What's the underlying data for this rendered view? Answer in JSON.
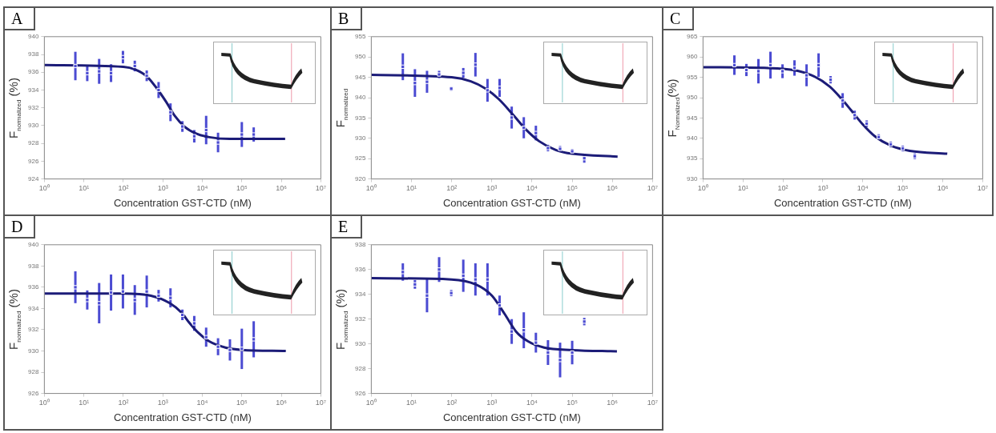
{
  "chart_data": [
    {
      "type": "scatter",
      "title": "A",
      "xlabel": "Concentration GST-CTD (nM)",
      "ylabel": "F$_{normalized}$ (%)",
      "log": "x",
      "xlim": [
        1,
        10000000
      ],
      "ylim": [
        924,
        940
      ],
      "xticks": [
        {
          "value": 1,
          "label": "10⁰"
        },
        {
          "value": 10,
          "label": "10¹"
        },
        {
          "value": 100,
          "label": "10²"
        },
        {
          "value": 1000,
          "label": "10³"
        },
        {
          "value": 10000,
          "label": "10⁴"
        },
        {
          "value": 100000,
          "label": "10⁵"
        },
        {
          "value": 1000000,
          "label": "10⁶"
        },
        {
          "value": 10000000,
          "label": "10⁷"
        }
      ],
      "yticks": [
        924,
        926,
        928,
        930,
        932,
        934,
        936,
        938,
        940
      ],
      "series": [
        {
          "type": "scatter",
          "marker": "square",
          "color": "#4b4bd2",
          "x": [
            6.1,
            12.2,
            24.4,
            48.8,
            97.7,
            195,
            391,
            781,
            1562,
            3125,
            6250,
            12500,
            25000,
            100000,
            200000
          ],
          "values": [
            936.7,
            935.9,
            936.1,
            935.9,
            937.7,
            936.7,
            935.6,
            934.0,
            931.5,
            929.9,
            928.8,
            929.5,
            928.1,
            929.0,
            929.0
          ],
          "errors": [
            1.6,
            0.9,
            1.4,
            1.0,
            0.7,
            0.6,
            0.6,
            0.9,
            1.0,
            0.6,
            0.7,
            1.6,
            1.1,
            1.4,
            0.8
          ]
        },
        {
          "type": "line",
          "marker": "none",
          "color": "#1c1c78",
          "x": [
            1,
            100,
            200,
            400,
            700,
            1200,
            2000,
            3500,
            7000,
            15000,
            50000,
            1250000
          ],
          "values": [
            936.8,
            936.6,
            936.3,
            935.5,
            934.2,
            932.7,
            931.1,
            929.9,
            929.1,
            928.7,
            928.5,
            928.5
          ]
        }
      ]
    },
    {
      "type": "scatter",
      "title": "B",
      "xlabel": "Concentration GST-CTD (nM)",
      "ylabel": "F$_{normalized}$",
      "log": "x",
      "xlim": [
        1,
        10000000
      ],
      "ylim": [
        920,
        955
      ],
      "xticks": [
        {
          "value": 1,
          "label": "10⁰"
        },
        {
          "value": 10,
          "label": "10¹"
        },
        {
          "value": 100,
          "label": "10²"
        },
        {
          "value": 1000,
          "label": "10³"
        },
        {
          "value": 10000,
          "label": "10⁴"
        },
        {
          "value": 100000,
          "label": "10⁵"
        },
        {
          "value": 1000000,
          "label": "10⁶"
        },
        {
          "value": 10000000,
          "label": "10⁷"
        }
      ],
      "yticks": [
        920,
        925,
        930,
        935,
        940,
        945,
        950,
        955
      ],
      "series": [
        {
          "type": "scatter",
          "marker": "square",
          "color": "#4b4bd2",
          "x": [
            6.1,
            12.2,
            24.4,
            48.8,
            97.7,
            195,
            391,
            781,
            1562,
            3125,
            6250,
            12500,
            25000,
            50000,
            100000,
            200000
          ],
          "values": [
            947.6,
            943.6,
            943.9,
            945.7,
            942.2,
            946.1,
            948.1,
            941.8,
            942.4,
            935.1,
            932.6,
            931.3,
            927.6,
            927.4,
            926.8,
            925.1
          ],
          "errors": [
            3.3,
            3.4,
            2.7,
            0.9,
            0.5,
            1.2,
            2.9,
            2.8,
            2.2,
            2.7,
            2.6,
            1.8,
            0.8,
            0.7,
            0.6,
            1.1
          ]
        },
        {
          "type": "line",
          "marker": "none",
          "color": "#1c1c78",
          "x": [
            1,
            100,
            300,
            700,
            1500,
            3500,
            7000,
            15000,
            40000,
            100000,
            1350000
          ],
          "values": [
            945.6,
            945.0,
            944.0,
            942.2,
            939.6,
            935.6,
            932.2,
            929.3,
            927.1,
            926.2,
            925.5
          ]
        }
      ]
    },
    {
      "type": "scatter",
      "title": "C",
      "xlabel": "Concentration GST-CTD (nM)",
      "ylabel": "F$_{Normalized}$(%)",
      "log": "x",
      "xlim": [
        1,
        10000000
      ],
      "ylim": [
        930,
        965
      ],
      "xticks": [
        {
          "value": 1,
          "label": "10⁰"
        },
        {
          "value": 10,
          "label": "10¹"
        },
        {
          "value": 100,
          "label": "10²"
        },
        {
          "value": 1000,
          "label": "10³"
        },
        {
          "value": 10000,
          "label": "10⁴"
        },
        {
          "value": 100000,
          "label": "10⁵"
        },
        {
          "value": 1000000,
          "label": "10⁶"
        },
        {
          "value": 10000000,
          "label": "10⁷"
        }
      ],
      "yticks": [
        930,
        935,
        940,
        945,
        950,
        955,
        960,
        965
      ],
      "series": [
        {
          "type": "scatter",
          "marker": "square",
          "color": "#4b4bd2",
          "x": [
            6.1,
            12.2,
            24.4,
            48.8,
            97.7,
            195,
            391,
            781,
            1562,
            3125,
            6250,
            12500,
            25000,
            50000,
            100000,
            200000
          ],
          "values": [
            958.0,
            956.8,
            956.5,
            958.0,
            956.5,
            957.3,
            955.5,
            958.0,
            954.4,
            949.3,
            945.7,
            943.6,
            940.3,
            938.5,
            937.5,
            935.6
          ],
          "errors": [
            2.4,
            1.5,
            3.0,
            3.3,
            1.7,
            1.9,
            2.7,
            2.9,
            0.9,
            1.8,
            1.1,
            0.8,
            0.7,
            0.7,
            0.7,
            0.7
          ]
        },
        {
          "type": "line",
          "marker": "none",
          "color": "#1c1c78",
          "x": [
            1,
            100,
            500,
            1500,
            3000,
            5100,
            10000,
            20000,
            50000,
            150000,
            1300000
          ],
          "values": [
            957.5,
            957.1,
            955.6,
            952.7,
            949.6,
            946.9,
            943.4,
            940.5,
            938.2,
            936.9,
            936.2
          ]
        }
      ]
    },
    {
      "type": "scatter",
      "title": "D",
      "xlabel": "Concentration GST-CTD (nM)",
      "ylabel": "F$_{normalized}$ (%)",
      "log": "x",
      "xlim": [
        1,
        10000000
      ],
      "ylim": [
        926,
        940
      ],
      "xticks": [
        {
          "value": 1,
          "label": "10⁰"
        },
        {
          "value": 10,
          "label": "10¹"
        },
        {
          "value": 100,
          "label": "10²"
        },
        {
          "value": 1000,
          "label": "10³"
        },
        {
          "value": 10000,
          "label": "10⁴"
        },
        {
          "value": 100000,
          "label": "10⁵"
        },
        {
          "value": 1000000,
          "label": "10⁶"
        },
        {
          "value": 10000000,
          "label": "10⁷"
        }
      ],
      "yticks": [
        926,
        928,
        930,
        932,
        934,
        936,
        938,
        940
      ],
      "series": [
        {
          "type": "scatter",
          "marker": "square",
          "color": "#4b4bd2",
          "x": [
            6.1,
            12.2,
            24.4,
            48.8,
            97.7,
            195,
            391,
            781,
            1562,
            3125,
            6250,
            12500,
            25000,
            50000,
            100000,
            200000
          ],
          "values": [
            936.0,
            934.8,
            934.5,
            935.5,
            935.6,
            934.8,
            935.6,
            935.2,
            935.0,
            933.4,
            932.6,
            931.3,
            930.4,
            930.1,
            930.2,
            931.1
          ],
          "errors": [
            1.5,
            0.9,
            1.9,
            1.7,
            1.6,
            1.4,
            1.5,
            0.55,
            0.9,
            0.5,
            0.7,
            0.9,
            0.8,
            1.0,
            1.9,
            1.7
          ]
        },
        {
          "type": "line",
          "marker": "none",
          "color": "#1c1c78",
          "x": [
            1,
            100,
            500,
            1500,
            3000,
            4600,
            8000,
            15000,
            40000,
            100000,
            1300000
          ],
          "values": [
            935.4,
            935.4,
            935.2,
            934.5,
            933.6,
            932.7,
            931.7,
            930.9,
            930.3,
            930.1,
            930.0
          ]
        }
      ]
    },
    {
      "type": "scatter",
      "title": "E",
      "xlabel": "Concentration GST-CTD (nM)",
      "ylabel": "F$_{normalized}$ (%)",
      "log": "x",
      "xlim": [
        1,
        10000000
      ],
      "ylim": [
        926,
        938
      ],
      "xticks": [
        {
          "value": 1,
          "label": "10⁰"
        },
        {
          "value": 10,
          "label": "10¹"
        },
        {
          "value": 100,
          "label": "10²"
        },
        {
          "value": 1000,
          "label": "10³"
        },
        {
          "value": 10000,
          "label": "10⁴"
        },
        {
          "value": 100000,
          "label": "10⁵"
        },
        {
          "value": 1000000,
          "label": "10⁶"
        },
        {
          "value": 10000000,
          "label": "10⁷"
        }
      ],
      "yticks": [
        926,
        928,
        930,
        932,
        934,
        936,
        938
      ],
      "series": [
        {
          "type": "scatter",
          "marker": "square",
          "color": "#4b4bd2",
          "x": [
            6.1,
            12.2,
            24.4,
            48.8,
            97.7,
            195,
            391,
            781,
            1562,
            3125,
            6250,
            12500,
            25000,
            50000,
            100000,
            200000
          ],
          "values": [
            935.8,
            934.8,
            933.9,
            936.0,
            934.1,
            935.5,
            935.2,
            935.2,
            933.1,
            931.0,
            931.1,
            930.1,
            929.3,
            928.7,
            929.3,
            931.8
          ],
          "errors": [
            0.7,
            0.35,
            1.35,
            1.0,
            0.25,
            1.3,
            1.3,
            1.3,
            0.8,
            1.0,
            1.45,
            0.8,
            1.0,
            1.4,
            0.95,
            0.3
          ]
        },
        {
          "type": "line",
          "marker": "none",
          "color": "#1c1c78",
          "x": [
            1,
            100,
            400,
            1000,
            2100,
            4000,
            8000,
            20000,
            100000,
            1300000
          ],
          "values": [
            935.3,
            935.2,
            934.8,
            933.9,
            932.4,
            931.0,
            930.2,
            929.7,
            929.5,
            929.4
          ]
        }
      ]
    }
  ]
}
